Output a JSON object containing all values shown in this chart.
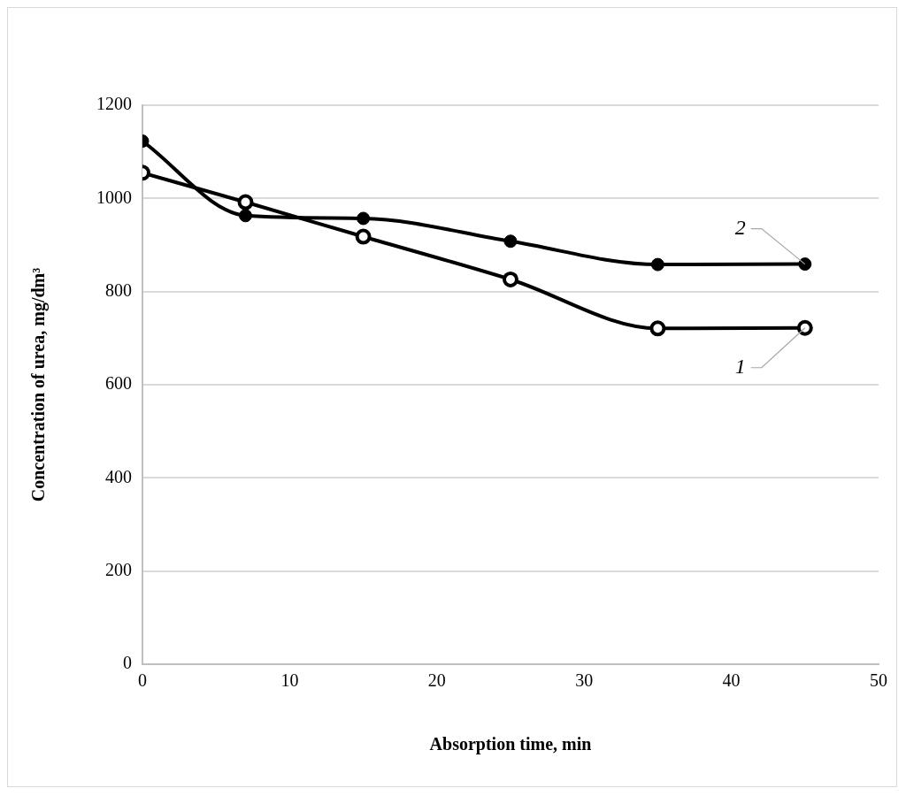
{
  "chart_data": {
    "type": "line",
    "xlabel": "Absorption time, min",
    "ylabel": "Concentration of urea, mg/dm³",
    "x": [
      0,
      7,
      15,
      25,
      35,
      45
    ],
    "series": [
      {
        "name": "1",
        "color": "#000000",
        "values": [
          1055,
          992,
          918,
          826,
          721,
          722
        ]
      },
      {
        "name": "2",
        "color": "#000000",
        "values": [
          1123,
          963,
          957,
          908,
          858,
          859
        ]
      }
    ],
    "xlim": [
      0,
      50
    ],
    "xticks": [
      0,
      10,
      20,
      30,
      40,
      50
    ],
    "ylim": [
      0,
      1200
    ],
    "yticks": [
      0,
      200,
      400,
      600,
      800,
      1000,
      1200
    ],
    "grid": "y",
    "legend": false,
    "marker": "circle",
    "line_style": "solid"
  }
}
